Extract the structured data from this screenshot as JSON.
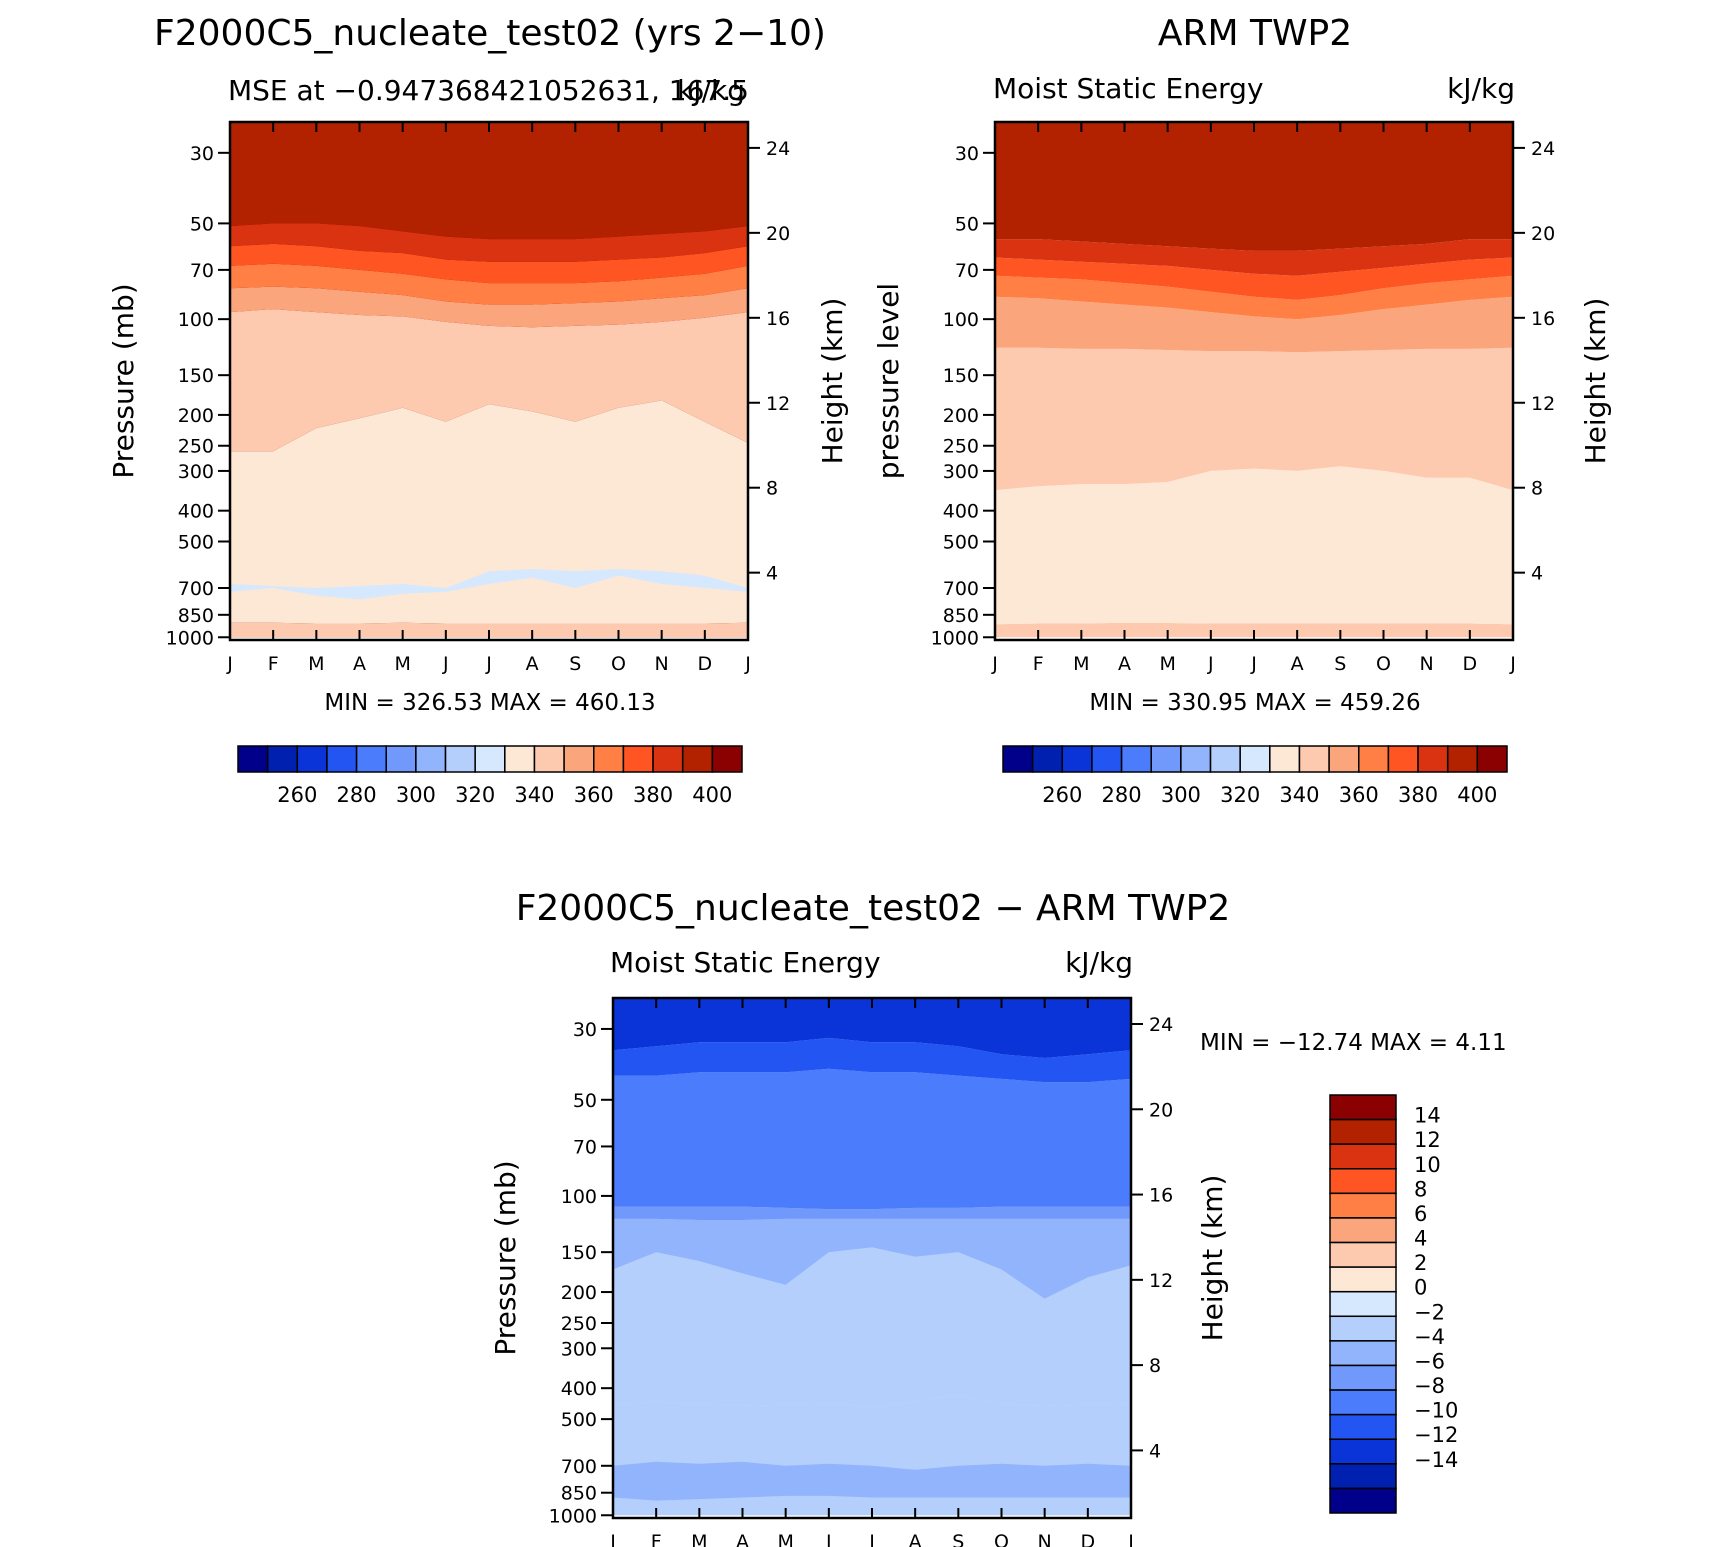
{
  "chart_data": [
    {
      "type": "contour",
      "title": "F2000C5_nucleate_test02 (yrs 2−10)",
      "subtitle_left": "MSE at −0.947368421052631, 167.5",
      "units": "kJ/kg",
      "ylabel": "Pressure (mb)",
      "ylabel_right": "Height (km)",
      "x_ticks": [
        "J",
        "F",
        "M",
        "A",
        "M",
        "J",
        "J",
        "A",
        "S",
        "O",
        "N",
        "D",
        "J"
      ],
      "y_ticks": [
        "30",
        "50",
        "70",
        "100",
        "150",
        "200",
        "250",
        "300",
        "400",
        "500",
        "700",
        "850",
        "1000"
      ],
      "y_ticks_right": [
        "24",
        "20",
        "16",
        "12",
        "8",
        "4"
      ],
      "min_max": "MIN = 326.53  MAX = 460.13",
      "bands": [
        {
          "level_max": 999,
          "color": "#8b0000"
        },
        {
          "level_max": 400,
          "color": "#b22200"
        },
        {
          "level_max": 390,
          "color": "#d93311"
        },
        {
          "level_max": 380,
          "color": "#ff5522"
        },
        {
          "level_max": 370,
          "color": "#ff7f44"
        },
        {
          "level_max": 360,
          "color": "#fba57d"
        },
        {
          "level_max": 350,
          "color": "#fdcab0"
        },
        {
          "level_max": 340,
          "color": "#fde8d6"
        },
        {
          "level_max": 330,
          "color": "#d6e8fd"
        }
      ]
    },
    {
      "type": "contour",
      "title": "ARM TWP2",
      "subtitle_left": "Moist Static Energy",
      "units": "kJ/kg",
      "ylabel": "pressure level",
      "ylabel_right": "Height (km)",
      "x_ticks": [
        "J",
        "F",
        "M",
        "A",
        "M",
        "J",
        "J",
        "A",
        "S",
        "O",
        "N",
        "D",
        "J"
      ],
      "y_ticks": [
        "30",
        "50",
        "70",
        "100",
        "150",
        "200",
        "250",
        "300",
        "400",
        "500",
        "700",
        "850",
        "1000"
      ],
      "y_ticks_right": [
        "24",
        "20",
        "16",
        "12",
        "8",
        "4"
      ],
      "min_max": "MIN = 330.95  MAX = 459.26",
      "bands": [
        {
          "level_max": 999,
          "color": "#8b0000"
        },
        {
          "level_max": 400,
          "color": "#b22200"
        },
        {
          "level_max": 390,
          "color": "#d93311"
        },
        {
          "level_max": 380,
          "color": "#ff5522"
        },
        {
          "level_max": 370,
          "color": "#ff7f44"
        },
        {
          "level_max": 360,
          "color": "#fba57d"
        },
        {
          "level_max": 350,
          "color": "#fdcab0"
        },
        {
          "level_max": 340,
          "color": "#fde8d6"
        }
      ]
    },
    {
      "type": "contour",
      "title": "F2000C5_nucleate_test02 − ARM TWP2",
      "subtitle_left": "Moist Static Energy",
      "units": "kJ/kg",
      "ylabel": "Pressure (mb)",
      "ylabel_right": "Height (km)",
      "x_ticks": [
        "J",
        "F",
        "M",
        "A",
        "M",
        "J",
        "J",
        "A",
        "S",
        "O",
        "N",
        "D",
        "J"
      ],
      "y_ticks": [
        "30",
        "50",
        "70",
        "100",
        "150",
        "200",
        "250",
        "300",
        "400",
        "500",
        "700",
        "850",
        "1000"
      ],
      "y_ticks_right": [
        "24",
        "20",
        "16",
        "12",
        "8",
        "4"
      ],
      "min_max": "MIN = −12.74  MAX =     4.11",
      "bands": [
        {
          "level_max": 4,
          "color": "#fdcab0"
        },
        {
          "level_max": 2,
          "color": "#fde8d6"
        },
        {
          "level_max": 0,
          "color": "#d6e8fd"
        },
        {
          "level_max": -2,
          "color": "#b5cffc"
        },
        {
          "level_max": -4,
          "color": "#92b4fc"
        },
        {
          "level_max": -6,
          "color": "#7199fb"
        },
        {
          "level_max": -8,
          "color": "#4a7cfc"
        },
        {
          "level_max": -10,
          "color": "#2355f3"
        },
        {
          "level_max": -12,
          "color": "#0a34d8"
        }
      ]
    }
  ],
  "colorbar_top": {
    "colors": [
      "#00008b",
      "#0020b0",
      "#0a34d8",
      "#2355f3",
      "#4a7cfc",
      "#7199fb",
      "#92b4fc",
      "#b5cffc",
      "#d6e8fd",
      "#fde8d6",
      "#fdcab0",
      "#fba57d",
      "#ff7f44",
      "#ff5522",
      "#d93311",
      "#b22200",
      "#8b0000"
    ],
    "labels": [
      "260",
      "280",
      "300",
      "320",
      "340",
      "360",
      "380",
      "400"
    ]
  },
  "colorbar_diff": {
    "colors": [
      "#8b0000",
      "#b22200",
      "#d93311",
      "#ff5522",
      "#ff7f44",
      "#fba57d",
      "#fdcab0",
      "#fde8d6",
      "#d6e8fd",
      "#b5cffc",
      "#92b4fc",
      "#7199fb",
      "#4a7cfc",
      "#2355f3",
      "#0a34d8",
      "#0020b0",
      "#00008b"
    ],
    "labels": [
      "14",
      "12",
      "10",
      "8",
      "6",
      "4",
      "2",
      "0",
      "−2",
      "−4",
      "−6",
      "−8",
      "−10",
      "−12",
      "−14"
    ]
  }
}
